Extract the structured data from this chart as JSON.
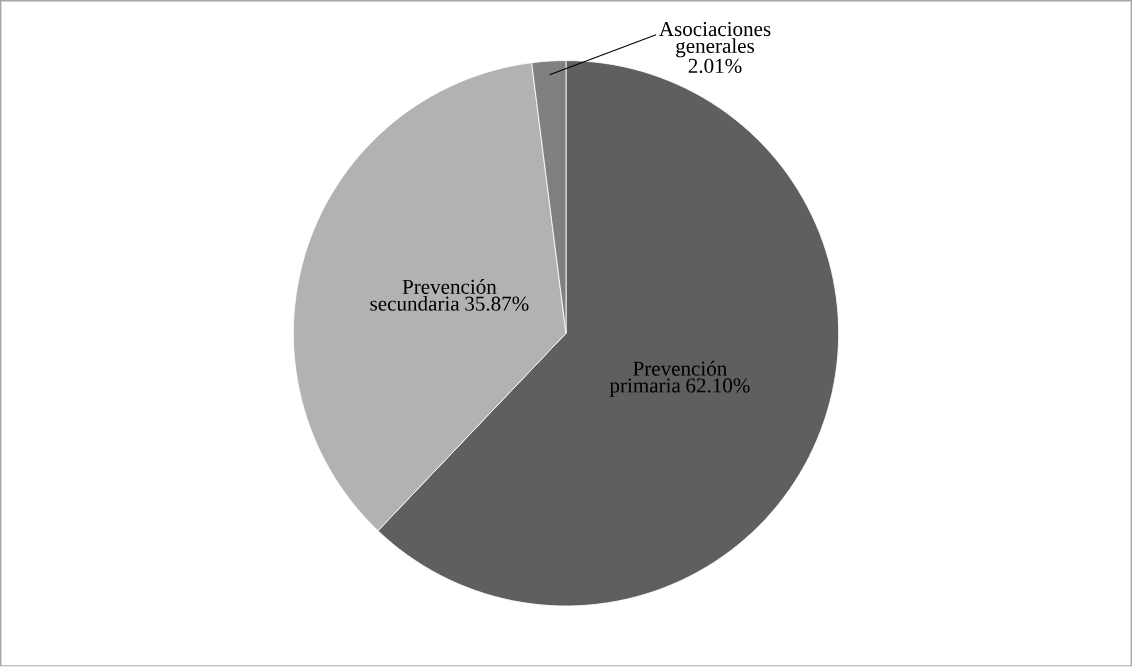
{
  "chart_data": {
    "type": "pie",
    "categories": [
      "Prevención primaria",
      "Prevención secundaria",
      "Asociaciones generales"
    ],
    "values": [
      62.1,
      35.87,
      2.01
    ],
    "value_labels": [
      "62.10%",
      "35.87%",
      "2.01%"
    ],
    "colors": [
      "#5f5f5f",
      "#b2b2b2",
      "#808080"
    ]
  }
}
